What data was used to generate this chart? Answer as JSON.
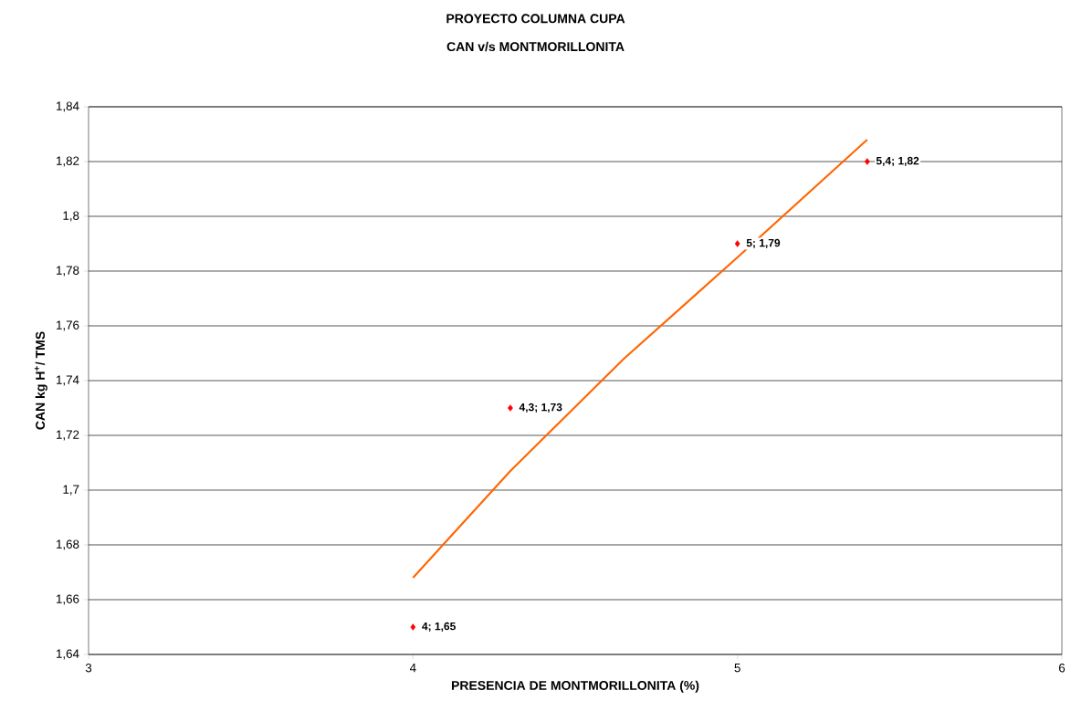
{
  "chart_data": {
    "type": "scatter",
    "title": "PROYECTO COLUMNA CUPA",
    "subtitle": "CAN v/s MONTMORILLONITA",
    "xlabel": "PRESENCIA DE MONTMORILLONITA (%)",
    "ylabel": "CAN kg H$^{+}$/ TMS",
    "series": [
      {
        "color": "#ff0000",
        "marker": "diamond",
        "x": [
          4,
          4.3,
          5,
          5.4
        ],
        "values": [
          1.65,
          1.73,
          1.79,
          1.82
        ],
        "value_labels": [
          "4; 1,65",
          "4,3; 1,73",
          "5; 1,79",
          "5,4; 1,82"
        ]
      },
      {
        "type": "line",
        "color": "#ff6600",
        "marker": "none",
        "x": [
          4,
          4.3,
          4.65,
          5,
          5.4
        ],
        "values": [
          1.668,
          1.707,
          1.748,
          1.785,
          1.828
        ]
      }
    ],
    "xlim": [
      3,
      6
    ],
    "xticks": [
      3,
      4,
      5,
      6
    ],
    "ylim": [
      1.64,
      1.84
    ],
    "yticks": [
      {
        "value": 1.64,
        "label": "1,64"
      },
      {
        "value": 1.66,
        "label": "1,66"
      },
      {
        "value": 1.68,
        "label": "1,68"
      },
      {
        "value": 1.7,
        "label": "1,7"
      },
      {
        "value": 1.72,
        "label": "1,72"
      },
      {
        "value": 1.74,
        "label": "1,74"
      },
      {
        "value": 1.76,
        "label": "1,76"
      },
      {
        "value": 1.78,
        "label": "1,78"
      },
      {
        "value": 1.8,
        "label": "1,8"
      },
      {
        "value": 1.82,
        "label": "1,82"
      },
      {
        "value": 1.84,
        "label": "1,84"
      }
    ],
    "grid": "y"
  }
}
